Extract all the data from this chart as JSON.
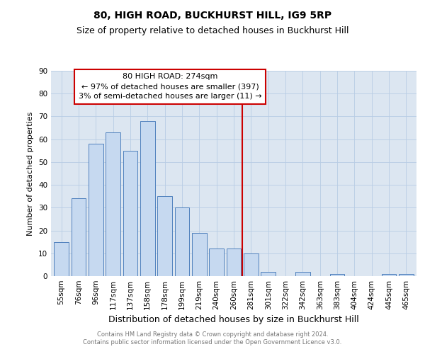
{
  "title": "80, HIGH ROAD, BUCKHURST HILL, IG9 5RP",
  "subtitle": "Size of property relative to detached houses in Buckhurst Hill",
  "xlabel": "Distribution of detached houses by size in Buckhurst Hill",
  "ylabel": "Number of detached properties",
  "footer_line1": "Contains HM Land Registry data © Crown copyright and database right 2024.",
  "footer_line2": "Contains public sector information licensed under the Open Government Licence v3.0.",
  "bar_labels": [
    "55sqm",
    "76sqm",
    "96sqm",
    "117sqm",
    "137sqm",
    "158sqm",
    "178sqm",
    "199sqm",
    "219sqm",
    "240sqm",
    "260sqm",
    "281sqm",
    "301sqm",
    "322sqm",
    "342sqm",
    "363sqm",
    "383sqm",
    "404sqm",
    "424sqm",
    "445sqm",
    "465sqm"
  ],
  "bar_values": [
    15,
    34,
    58,
    63,
    55,
    68,
    35,
    30,
    19,
    12,
    12,
    10,
    2,
    0,
    2,
    0,
    1,
    0,
    0,
    1,
    1
  ],
  "bar_color": "#c6d9f0",
  "bar_edge_color": "#4f81bd",
  "vline_x": 10.5,
  "vline_color": "#cc0000",
  "annotation_text": "80 HIGH ROAD: 274sqm\n← 97% of detached houses are smaller (397)\n3% of semi-detached houses are larger (11) →",
  "annotation_box_color": "#cc0000",
  "annotation_text_color": "#000000",
  "ylim": [
    0,
    90
  ],
  "yticks": [
    0,
    10,
    20,
    30,
    40,
    50,
    60,
    70,
    80,
    90
  ],
  "grid_color": "#b8cce4",
  "bg_color": "#dce6f1",
  "title_fontsize": 10,
  "subtitle_fontsize": 9,
  "tick_fontsize": 7.5,
  "ylabel_fontsize": 8,
  "xlabel_fontsize": 9,
  "annot_fontsize": 8,
  "footer_fontsize": 6,
  "footer_color": "#777777"
}
